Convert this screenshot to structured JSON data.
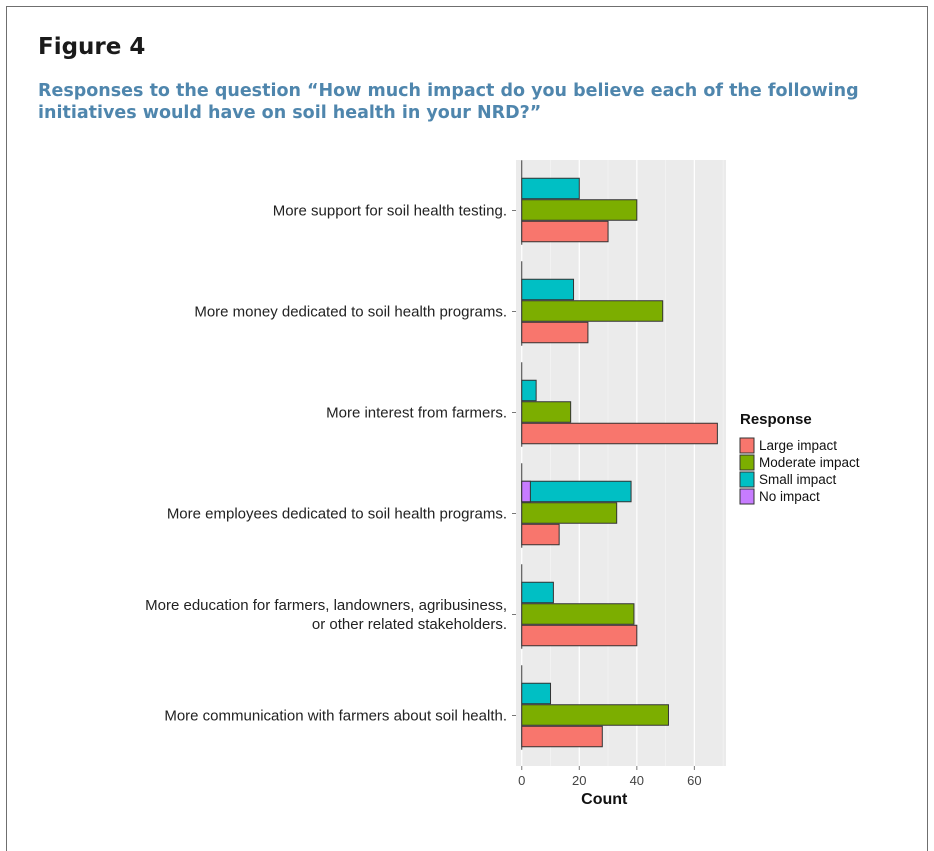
{
  "figure": {
    "label": "Figure 4",
    "caption": "Responses to the question “How much impact do you believe each of the following initiatives would have on soil health in your NRD?”"
  },
  "chart_data": {
    "type": "bar",
    "orientation": "horizontal",
    "categories": [
      [
        "More support for soil health testing."
      ],
      [
        "More money dedicated to soil health programs."
      ],
      [
        "More interest from farmers."
      ],
      [
        "More employees dedicated to soil health programs."
      ],
      [
        "More education for farmers, landowners, agribusiness,",
        "or other related stakeholders."
      ],
      [
        "More communication with farmers about soil health."
      ]
    ],
    "series": [
      {
        "name": "Large impact",
        "color": "#f8766d",
        "values": [
          30,
          23,
          68,
          13,
          40,
          28
        ]
      },
      {
        "name": "Moderate impact",
        "color": "#7cae00",
        "values": [
          40,
          49,
          17,
          33,
          39,
          51
        ]
      },
      {
        "name": "Small impact",
        "color": "#00bfc4",
        "values": [
          20,
          18,
          5,
          38,
          11,
          10
        ]
      },
      {
        "name": "No impact",
        "color": "#c77cff",
        "values": [
          0,
          0,
          0,
          3,
          0,
          0
        ]
      }
    ],
    "xlabel": "Count",
    "ylabel": "",
    "xlim": [
      -2,
      71
    ],
    "xticks": [
      0,
      20,
      40,
      60
    ],
    "legend": {
      "title": "Response",
      "position": "right"
    },
    "grid": true,
    "panel_background": "#ebebeb"
  }
}
